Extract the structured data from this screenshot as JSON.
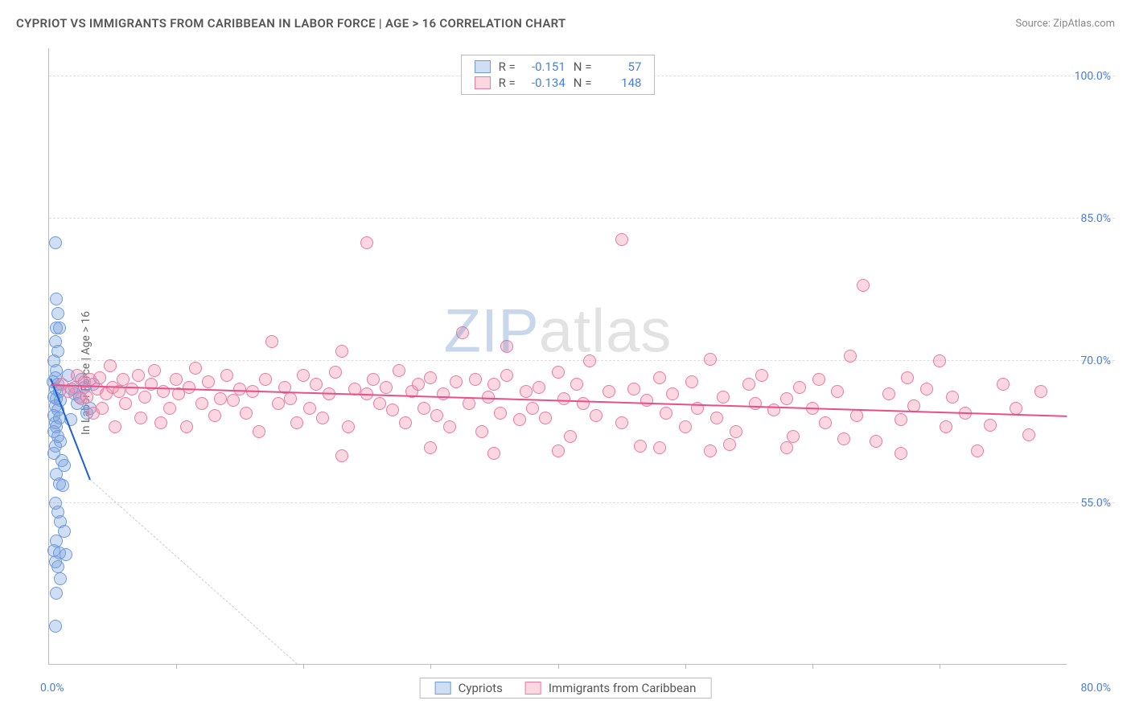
{
  "header": {
    "title": "CYPRIOT VS IMMIGRANTS FROM CARIBBEAN IN LABOR FORCE | AGE > 16 CORRELATION CHART",
    "source_prefix": "Source: ",
    "source_name": "ZipAtlas.com"
  },
  "watermark": {
    "part1": "ZIP",
    "part2": "atlas"
  },
  "chart": {
    "type": "scatter",
    "y_axis_title": "In Labor Force | Age > 16",
    "background_color": "#ffffff",
    "grid_color": "#dddddd",
    "axis_color": "#bbbbbb",
    "tick_label_color": "#4a7fd4",
    "x_domain": [
      0,
      80
    ],
    "y_domain": [
      38,
      103
    ],
    "x_origin_label": "0.0%",
    "x_max_label": "80.0%",
    "y_ticks": [
      {
        "value": 100,
        "label": "100.0%"
      },
      {
        "value": 85,
        "label": "85.0%"
      },
      {
        "value": 70,
        "label": "70.0%"
      },
      {
        "value": 55,
        "label": "55.0%"
      }
    ],
    "x_tick_positions": [
      10,
      20,
      30,
      40,
      50,
      60,
      70
    ],
    "series": [
      {
        "id": "cypriots",
        "label": "Cypriots",
        "fill": "rgba(120,160,220,0.35)",
        "stroke": "#6d9adf",
        "trend_color": "#1e62c9",
        "R": "-0.151",
        "N": "57",
        "trend": {
          "x1": 0.1,
          "y1": 68.2,
          "x2": 3.2,
          "y2": 57.5
        },
        "dashed_ext": {
          "x1": 3.2,
          "y1": 57.5,
          "x2": 19.5,
          "y2": 38
        },
        "points": [
          [
            0.5,
            82.5
          ],
          [
            0.6,
            76.5
          ],
          [
            0.7,
            75
          ],
          [
            0.6,
            73.5
          ],
          [
            0.8,
            73.5
          ],
          [
            0.5,
            72
          ],
          [
            0.7,
            71
          ],
          [
            0.4,
            70
          ],
          [
            0.6,
            69
          ],
          [
            0.5,
            68.2
          ],
          [
            0.3,
            67.8
          ],
          [
            0.7,
            67.5
          ],
          [
            0.5,
            67
          ],
          [
            0.8,
            66.8
          ],
          [
            0.4,
            66.2
          ],
          [
            0.6,
            66
          ],
          [
            0.9,
            65.8
          ],
          [
            0.5,
            65.2
          ],
          [
            0.7,
            64.8
          ],
          [
            0.4,
            64.2
          ],
          [
            0.8,
            64
          ],
          [
            0.5,
            63.5
          ],
          [
            0.6,
            63
          ],
          [
            0.4,
            62.5
          ],
          [
            0.7,
            62
          ],
          [
            0.9,
            61.5
          ],
          [
            0.5,
            61
          ],
          [
            0.4,
            60.2
          ],
          [
            1.0,
            59.5
          ],
          [
            1.2,
            59
          ],
          [
            0.6,
            58
          ],
          [
            0.8,
            57
          ],
          [
            1.1,
            56.8
          ],
          [
            0.5,
            55
          ],
          [
            0.7,
            54
          ],
          [
            0.9,
            53
          ],
          [
            1.2,
            52
          ],
          [
            0.6,
            51
          ],
          [
            0.4,
            50
          ],
          [
            0.8,
            49.7
          ],
          [
            1.3,
            49.5
          ],
          [
            0.5,
            48.8
          ],
          [
            0.7,
            48.3
          ],
          [
            0.9,
            47
          ],
          [
            0.6,
            45.5
          ],
          [
            0.5,
            42
          ],
          [
            2.5,
            68
          ],
          [
            2.0,
            66.5
          ],
          [
            3.0,
            64.5
          ],
          [
            1.8,
            67
          ],
          [
            2.2,
            65.5
          ],
          [
            1.5,
            68.5
          ],
          [
            2.8,
            67.2
          ],
          [
            3.2,
            65
          ],
          [
            1.7,
            63.8
          ],
          [
            2.4,
            66.2
          ],
          [
            3.5,
            67.5
          ]
        ]
      },
      {
        "id": "caribbean",
        "label": "Immigrants from Caribbean",
        "fill": "rgba(240,140,170,0.35)",
        "stroke": "#ea7aa3",
        "trend_color": "#e94f87",
        "R": "-0.134",
        "N": "148",
        "trend": {
          "x1": 0.1,
          "y1": 67.5,
          "x2": 80,
          "y2": 64.2
        },
        "points": [
          [
            1,
            67.5
          ],
          [
            1.5,
            66.8
          ],
          [
            2,
            67.2
          ],
          [
            2.2,
            68.5
          ],
          [
            2.5,
            66
          ],
          [
            2.8,
            67.8
          ],
          [
            3,
            66.2
          ],
          [
            3.2,
            68
          ],
          [
            3.5,
            64.5
          ],
          [
            3.8,
            67
          ],
          [
            4,
            68.2
          ],
          [
            4.2,
            65
          ],
          [
            4.5,
            66.5
          ],
          [
            4.8,
            69.5
          ],
          [
            5,
            67.2
          ],
          [
            5.2,
            63
          ],
          [
            5.5,
            66.8
          ],
          [
            5.8,
            68
          ],
          [
            6,
            65.5
          ],
          [
            6.5,
            67
          ],
          [
            7,
            68.5
          ],
          [
            7.2,
            64
          ],
          [
            7.5,
            66.2
          ],
          [
            8,
            67.5
          ],
          [
            8.3,
            69
          ],
          [
            8.8,
            63.5
          ],
          [
            9,
            66.8
          ],
          [
            9.5,
            65
          ],
          [
            10,
            68
          ],
          [
            10.2,
            66.5
          ],
          [
            10.8,
            63
          ],
          [
            11,
            67.2
          ],
          [
            11.5,
            69.2
          ],
          [
            12,
            65.5
          ],
          [
            12.5,
            67.8
          ],
          [
            13,
            64.2
          ],
          [
            13.5,
            66
          ],
          [
            14,
            68.5
          ],
          [
            14.5,
            65.8
          ],
          [
            15,
            67
          ],
          [
            15.5,
            64.5
          ],
          [
            16,
            66.8
          ],
          [
            16.5,
            62.5
          ],
          [
            17,
            68
          ],
          [
            17.5,
            72
          ],
          [
            18,
            65.5
          ],
          [
            18.5,
            67.2
          ],
          [
            19,
            66
          ],
          [
            19.5,
            63.5
          ],
          [
            20,
            68.5
          ],
          [
            20.5,
            65
          ],
          [
            21,
            67.5
          ],
          [
            21.5,
            64
          ],
          [
            22,
            66.5
          ],
          [
            22.5,
            68.8
          ],
          [
            23,
            71
          ],
          [
            23.5,
            63
          ],
          [
            24,
            67
          ],
          [
            25,
            82.5
          ],
          [
            25,
            66.5
          ],
          [
            25.5,
            68
          ],
          [
            26,
            65.5
          ],
          [
            26.5,
            67.2
          ],
          [
            27,
            64.8
          ],
          [
            27.5,
            69
          ],
          [
            28,
            63.5
          ],
          [
            28.5,
            66.8
          ],
          [
            29,
            67.5
          ],
          [
            29.5,
            65
          ],
          [
            30,
            68.2
          ],
          [
            30.5,
            64.2
          ],
          [
            31,
            66.5
          ],
          [
            31.5,
            63
          ],
          [
            32,
            67.8
          ],
          [
            32.5,
            73
          ],
          [
            33,
            65.5
          ],
          [
            33.5,
            68
          ],
          [
            34,
            62.5
          ],
          [
            34.5,
            66.2
          ],
          [
            35,
            67.5
          ],
          [
            35.5,
            64.5
          ],
          [
            36,
            68.5
          ],
          [
            36,
            71.5
          ],
          [
            37,
            63.8
          ],
          [
            37.5,
            66.8
          ],
          [
            38,
            65
          ],
          [
            38.5,
            67.2
          ],
          [
            39,
            64
          ],
          [
            40,
            68.8
          ],
          [
            40.5,
            66
          ],
          [
            41,
            62
          ],
          [
            41.5,
            67.5
          ],
          [
            42,
            65.5
          ],
          [
            42.5,
            70
          ],
          [
            43,
            64.2
          ],
          [
            44,
            66.8
          ],
          [
            45,
            63.5
          ],
          [
            45,
            82.8
          ],
          [
            46,
            67
          ],
          [
            46.5,
            61
          ],
          [
            47,
            65.8
          ],
          [
            48,
            68.2
          ],
          [
            48.5,
            64.5
          ],
          [
            49,
            66.5
          ],
          [
            50,
            63
          ],
          [
            50.5,
            67.8
          ],
          [
            51,
            65
          ],
          [
            52,
            70.2
          ],
          [
            52.5,
            64
          ],
          [
            53,
            66.2
          ],
          [
            54,
            62.5
          ],
          [
            55,
            67.5
          ],
          [
            55.5,
            65.5
          ],
          [
            56,
            68.5
          ],
          [
            57,
            64.8
          ],
          [
            58,
            66
          ],
          [
            58.5,
            62
          ],
          [
            59,
            67.2
          ],
          [
            60,
            65
          ],
          [
            60.5,
            68
          ],
          [
            61,
            63.5
          ],
          [
            62,
            66.8
          ],
          [
            63,
            70.5
          ],
          [
            63.5,
            64.2
          ],
          [
            64,
            78
          ],
          [
            65,
            61.5
          ],
          [
            66,
            66.5
          ],
          [
            67,
            63.8
          ],
          [
            67.5,
            68.2
          ],
          [
            68,
            65.2
          ],
          [
            69,
            67
          ],
          [
            70,
            70
          ],
          [
            70.5,
            63
          ],
          [
            71,
            66.2
          ],
          [
            72,
            64.5
          ],
          [
            73,
            60.5
          ],
          [
            74,
            63.2
          ],
          [
            75,
            67.5
          ],
          [
            76,
            65
          ],
          [
            77,
            62.2
          ],
          [
            78,
            66.8
          ],
          [
            67,
            60.2
          ],
          [
            62.5,
            61.8
          ],
          [
            58,
            60.8
          ],
          [
            52,
            60.5
          ],
          [
            53.5,
            61.2
          ],
          [
            48,
            60.8
          ],
          [
            40,
            60.5
          ],
          [
            35,
            60.2
          ],
          [
            30,
            60.8
          ],
          [
            23,
            60
          ]
        ]
      }
    ]
  },
  "legend": {
    "items": [
      {
        "label": "Cypriots",
        "series": "cypriots"
      },
      {
        "label": "Immigrants from Caribbean",
        "series": "caribbean"
      }
    ]
  }
}
